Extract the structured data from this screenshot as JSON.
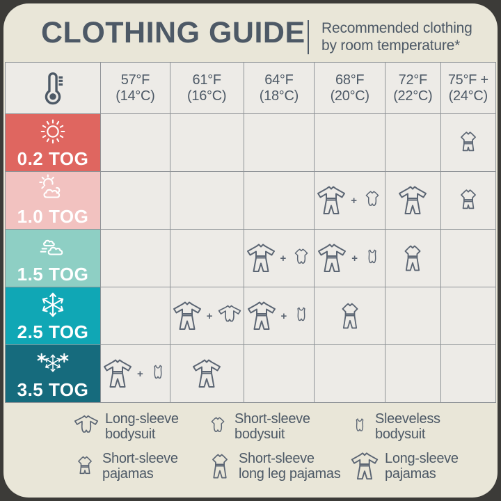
{
  "header": {
    "title": "CLOTHING GUIDE",
    "subtitle_line1": "Recommended clothing",
    "subtitle_line2": "by room temperature*"
  },
  "colors": {
    "card_bg": "#e9e6d8",
    "cell_bg": "#edebe7",
    "grid_line": "#8e9296",
    "slate_text": "#4d5966",
    "tog_02": "#df6660",
    "tog_10": "#f2c2c0",
    "tog_15": "#8ecfc4",
    "tog_25": "#10a7b5",
    "tog_35": "#166b7d"
  },
  "table": {
    "corner_icon": "thermometer-icon",
    "temp_columns": [
      {
        "f": "57°F",
        "c": "(14°C)"
      },
      {
        "f": "61°F",
        "c": "(16°C)"
      },
      {
        "f": "64°F",
        "c": "(18°C)"
      },
      {
        "f": "68°F",
        "c": "(20°C)"
      },
      {
        "f": "72°F",
        "c": "(22°C)"
      },
      {
        "f": "75°F +",
        "c": "(24°C)"
      }
    ],
    "rows": [
      {
        "tog": "0.2 TOG",
        "weather": "sun",
        "color": "#df6660",
        "cells": [
          [],
          [],
          [],
          [],
          [],
          [
            "short-sleeve-pajamas"
          ]
        ]
      },
      {
        "tog": "1.0 TOG",
        "weather": "sun-cloud",
        "color": "#f2c2c0",
        "cells": [
          [],
          [],
          [],
          [
            "long-sleeve-pajamas",
            "short-sleeve-bodysuit"
          ],
          [
            "long-sleeve-pajamas"
          ],
          [
            "short-sleeve-pajamas"
          ]
        ]
      },
      {
        "tog": "1.5 TOG",
        "weather": "wind-cloud",
        "color": "#8ecfc4",
        "cells": [
          [],
          [],
          [
            "long-sleeve-pajamas",
            "short-sleeve-bodysuit"
          ],
          [
            "long-sleeve-pajamas",
            "sleeveless-bodysuit"
          ],
          [
            "short-sleeve-long-leg-pajamas"
          ],
          []
        ]
      },
      {
        "tog": "2.5 TOG",
        "weather": "snowflake",
        "color": "#10a7b5",
        "cells": [
          [],
          [
            "long-sleeve-pajamas",
            "long-sleeve-bodysuit"
          ],
          [
            "long-sleeve-pajamas",
            "sleeveless-bodysuit"
          ],
          [
            "short-sleeve-long-leg-pajamas"
          ],
          [],
          []
        ]
      },
      {
        "tog": "3.5 TOG",
        "weather": "snowflakes",
        "color": "#166b7d",
        "cells": [
          [
            "long-sleeve-pajamas",
            "sleeveless-bodysuit"
          ],
          [
            "long-sleeve-pajamas"
          ],
          [],
          [],
          [],
          []
        ]
      }
    ],
    "combo_separator": "+"
  },
  "legend": {
    "rows": [
      [
        {
          "icon": "long-sleeve-bodysuit",
          "line1": "Long-sleeve",
          "line2": "bodysuit"
        },
        {
          "icon": "short-sleeve-bodysuit",
          "line1": "Short-sleeve",
          "line2": "bodysuit"
        },
        {
          "icon": "sleeveless-bodysuit",
          "line1": "Sleeveless",
          "line2": "bodysuit"
        }
      ],
      [
        {
          "icon": "short-sleeve-pajamas",
          "line1": "Short-sleeve",
          "line2": "pajamas"
        },
        {
          "icon": "short-sleeve-long-leg-pajamas",
          "line1": "Short-sleeve",
          "line2": "long leg pajamas"
        },
        {
          "icon": "long-sleeve-pajamas",
          "line1": "Long-sleeve",
          "line2": "pajamas"
        }
      ]
    ]
  },
  "chart_data": {
    "type": "table",
    "title": "CLOTHING GUIDE",
    "subtitle": "Recommended clothing by room temperature*",
    "columns": [
      "57°F (14°C)",
      "61°F (16°C)",
      "64°F (18°C)",
      "68°F (20°C)",
      "72°F (22°C)",
      "75°F + (24°C)"
    ],
    "row_labels": [
      "0.2 TOG",
      "1.0 TOG",
      "1.5 TOG",
      "2.5 TOG",
      "3.5 TOG"
    ],
    "matrix": [
      [
        null,
        null,
        null,
        null,
        null,
        "Short-sleeve pajamas"
      ],
      [
        null,
        null,
        null,
        "Long-sleeve pajamas + Short-sleeve bodysuit",
        "Long-sleeve pajamas",
        "Short-sleeve pajamas"
      ],
      [
        null,
        null,
        "Long-sleeve pajamas + Short-sleeve bodysuit",
        "Long-sleeve pajamas + Sleeveless bodysuit",
        "Short-sleeve long leg pajamas",
        null
      ],
      [
        null,
        "Long-sleeve pajamas + Long-sleeve bodysuit",
        "Long-sleeve pajamas + Sleeveless bodysuit",
        "Short-sleeve long leg pajamas",
        null,
        null
      ],
      [
        "Long-sleeve pajamas + Sleeveless bodysuit",
        "Long-sleeve pajamas",
        null,
        null,
        null,
        null
      ]
    ]
  }
}
